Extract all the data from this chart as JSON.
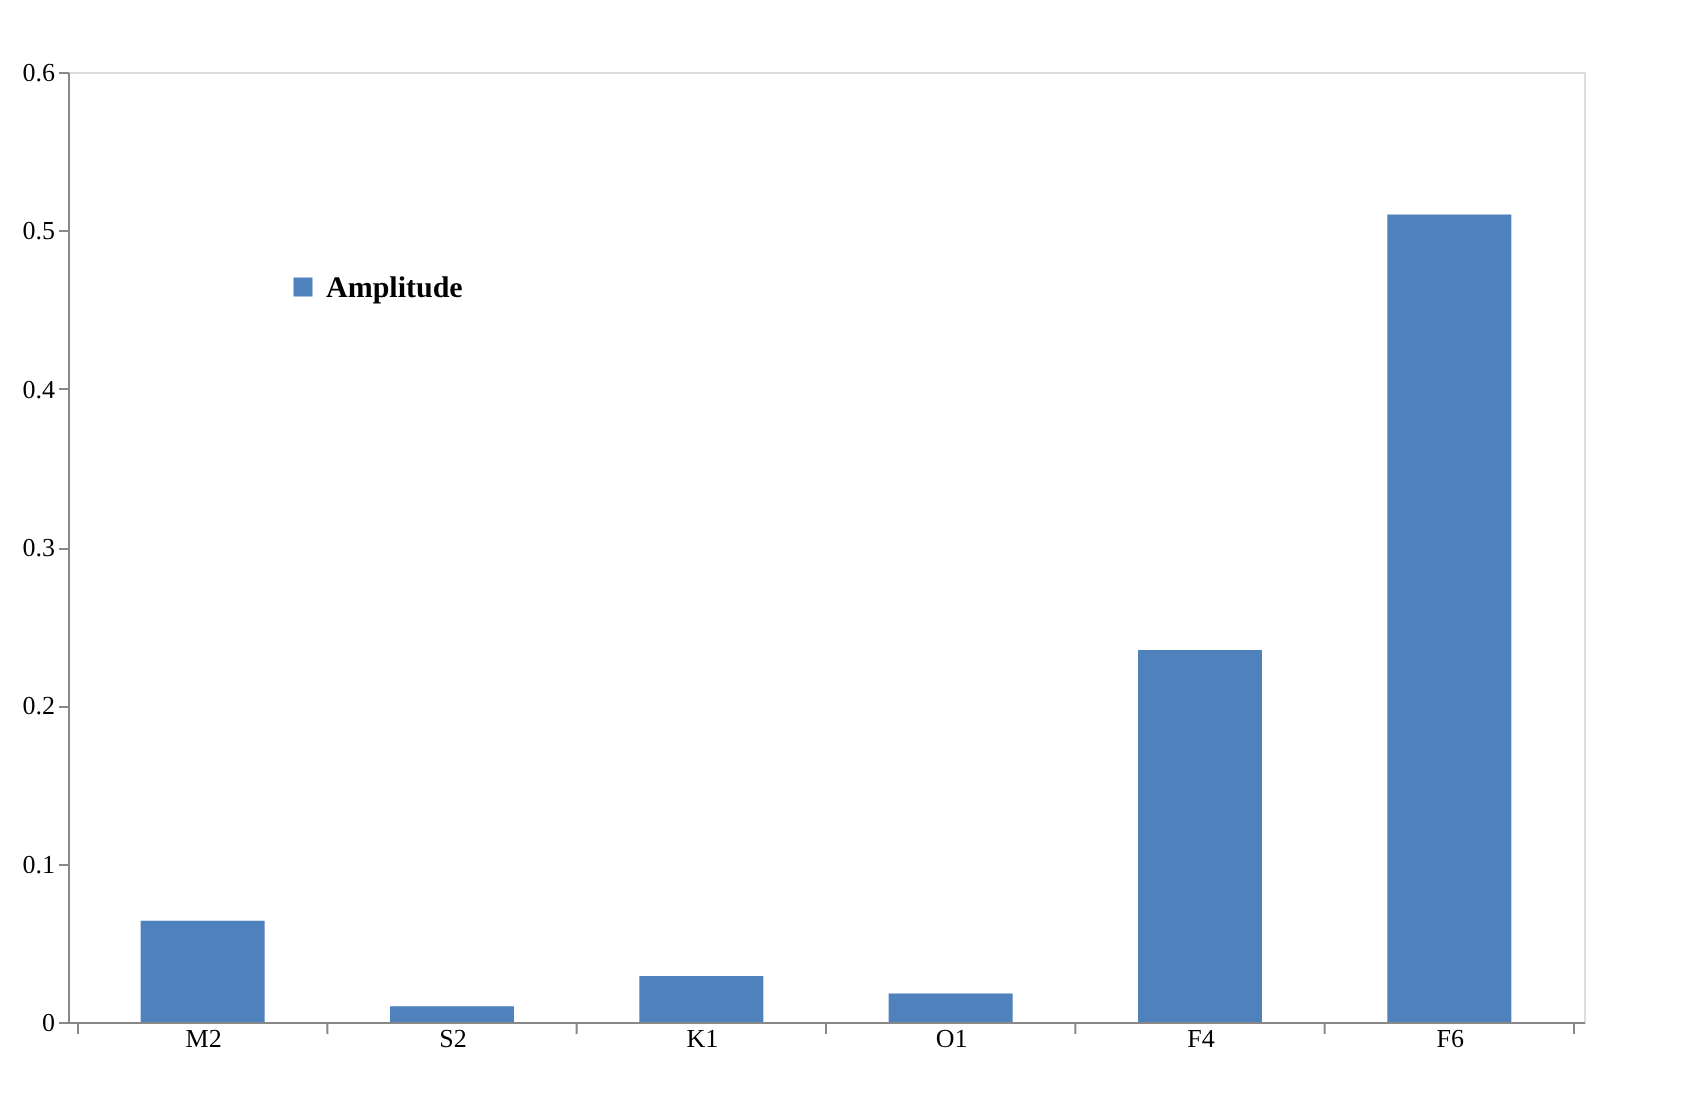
{
  "chart_data": {
    "type": "bar",
    "categories": [
      "M2",
      "S2",
      "K1",
      "O1",
      "F4",
      "F6"
    ],
    "series": [
      {
        "name": "Amplitude",
        "color": "#4f81bd",
        "values": [
          0.064,
          0.01,
          0.029,
          0.018,
          0.235,
          0.51
        ]
      }
    ],
    "ylim": [
      0,
      0.6
    ],
    "yticks": [
      0,
      0.1,
      0.2,
      0.3,
      0.4,
      0.5,
      0.6
    ],
    "grid": false,
    "legend": "top left"
  }
}
